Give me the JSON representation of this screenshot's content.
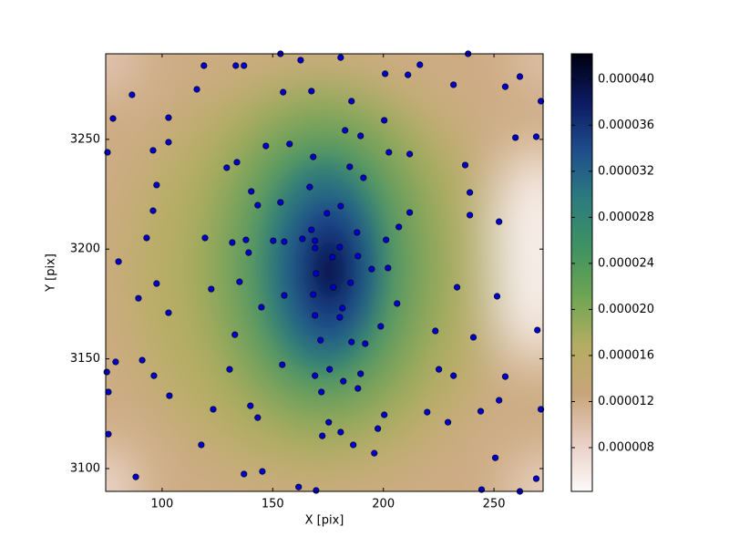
{
  "chart_data": {
    "type": "scatter",
    "xlabel": "X [pix]",
    "ylabel": "Y [pix]",
    "xlim": [
      74.5,
      272.2
    ],
    "ylim": [
      3089.6,
      3289.0
    ],
    "xticks": [
      100,
      150,
      200,
      250
    ],
    "yticks": [
      3100,
      3150,
      3200,
      3250
    ],
    "color": "#0000cc",
    "x": [
      153.5,
      180.7,
      162.6,
      118.9,
      133.3,
      137.0,
      216.5,
      238.3,
      200.8,
      211.1,
      231.7,
      86.4,
      77.8,
      102.9,
      115.7,
      154.7,
      167.5,
      185.6,
      255.1,
      261.7,
      271.2,
      200.4,
      182.7,
      189.7,
      75.3,
      95.9,
      102.9,
      146.9,
      157.6,
      259.7,
      269.1,
      202.5,
      211.9,
      168.3,
      184.8,
      237.0,
      191.0,
      97.5,
      129.2,
      133.8,
      140.3,
      143.2,
      153.5,
      166.7,
      239.1,
      239.1,
      95.9,
      252.3,
      207.0,
      211.9,
      180.7,
      167.5,
      174.5,
      163.4,
      169.1,
      188.1,
      119.4,
      93.0,
      80.3,
      131.7,
      137.9,
      139.1,
      150.2,
      155.2,
      201.2,
      202.1,
      180.3,
      177.0,
      169.1,
      188.5,
      194.7,
      169.6,
      185.2,
      177.4,
      168.3,
      181.5,
      180.3,
      169.1,
      135.0,
      122.2,
      97.5,
      89.3,
      102.9,
      144.9,
      155.2,
      206.2,
      198.8,
      171.6,
      185.6,
      191.8,
      223.5,
      240.7,
      233.3,
      251.4,
      132.9,
      269.6,
      130.5,
      154.3,
      169.1,
      175.7,
      181.9,
      189.7,
      188.5,
      172.0,
      225.1,
      231.7,
      255.1,
      252.3,
      96.3,
      91.0,
      79.0,
      75.0,
      75.7,
      103.3,
      139.9,
      143.2,
      123.1,
      175.3,
      172.4,
      180.7,
      186.4,
      197.5,
      200.4,
      219.8,
      229.2,
      244.0,
      271.2,
      75.7,
      117.7,
      137.0,
      145.3,
      88.1,
      161.7,
      169.6,
      195.9,
      250.6,
      244.4,
      261.7,
      269.1
    ],
    "y": [
      3289.0,
      3287.3,
      3286.1,
      3283.6,
      3283.6,
      3283.6,
      3284.0,
      3289.0,
      3279.9,
      3279.4,
      3274.9,
      3270.3,
      3259.5,
      3259.9,
      3272.8,
      3271.5,
      3272.0,
      3267.4,
      3274.0,
      3278.6,
      3267.4,
      3258.7,
      3254.1,
      3251.6,
      3244.1,
      3245.0,
      3248.7,
      3247.0,
      3247.9,
      3250.8,
      3251.2,
      3244.1,
      3243.3,
      3242.0,
      3237.5,
      3238.3,
      3232.5,
      3229.2,
      3237.1,
      3239.6,
      3226.3,
      3220.0,
      3221.3,
      3228.3,
      3225.8,
      3215.5,
      3217.5,
      3212.5,
      3210.1,
      3216.7,
      3219.6,
      3208.8,
      3216.3,
      3204.7,
      3203.8,
      3207.6,
      3205.1,
      3205.1,
      3194.3,
      3203.0,
      3204.2,
      3198.4,
      3203.8,
      3203.4,
      3204.2,
      3191.4,
      3200.9,
      3196.3,
      3200.5,
      3196.8,
      3190.9,
      3188.9,
      3184.7,
      3182.6,
      3179.3,
      3173.1,
      3168.9,
      3169.8,
      3185.1,
      3181.8,
      3184.3,
      3177.6,
      3171.0,
      3173.5,
      3178.9,
      3175.2,
      3164.8,
      3158.5,
      3157.7,
      3156.9,
      3162.7,
      3159.8,
      3182.6,
      3178.5,
      3161.0,
      3163.1,
      3145.2,
      3147.3,
      3142.3,
      3145.2,
      3139.8,
      3143.2,
      3136.5,
      3134.9,
      3145.2,
      3142.3,
      3141.9,
      3131.1,
      3142.3,
      3149.4,
      3148.6,
      3144.0,
      3134.9,
      3133.2,
      3128.6,
      3123.2,
      3127.0,
      3121.1,
      3114.9,
      3116.6,
      3110.8,
      3118.2,
      3124.5,
      3125.7,
      3121.1,
      3126.1,
      3127.0,
      3115.7,
      3110.8,
      3097.5,
      3098.7,
      3096.2,
      3091.6,
      3090.0,
      3107.0,
      3104.9,
      3090.4,
      3089.6,
      3095.4
    ],
    "colorbar": {
      "lim": [
        4.2e-06,
        4.22e-05
      ],
      "ticks": [
        {
          "value": 8e-06,
          "label": "0.000008"
        },
        {
          "value": 1.2e-05,
          "label": "0.000012"
        },
        {
          "value": 1.6e-05,
          "label": "0.000016"
        },
        {
          "value": 2e-05,
          "label": "0.000020"
        },
        {
          "value": 2.4e-05,
          "label": "0.000024"
        },
        {
          "value": 2.8e-05,
          "label": "0.000028"
        },
        {
          "value": 3.2e-05,
          "label": "0.000032"
        },
        {
          "value": 3.6e-05,
          "label": "0.000036"
        },
        {
          "value": 4e-05,
          "label": "0.000040"
        }
      ],
      "colors": [
        "#fdfafa",
        "#e8cfc4",
        "#c8a57a",
        "#b5ad63",
        "#6fa553",
        "#3f9262",
        "#2c7c7e",
        "#1f4e8c",
        "#0c1a62",
        "#000010"
      ]
    }
  }
}
